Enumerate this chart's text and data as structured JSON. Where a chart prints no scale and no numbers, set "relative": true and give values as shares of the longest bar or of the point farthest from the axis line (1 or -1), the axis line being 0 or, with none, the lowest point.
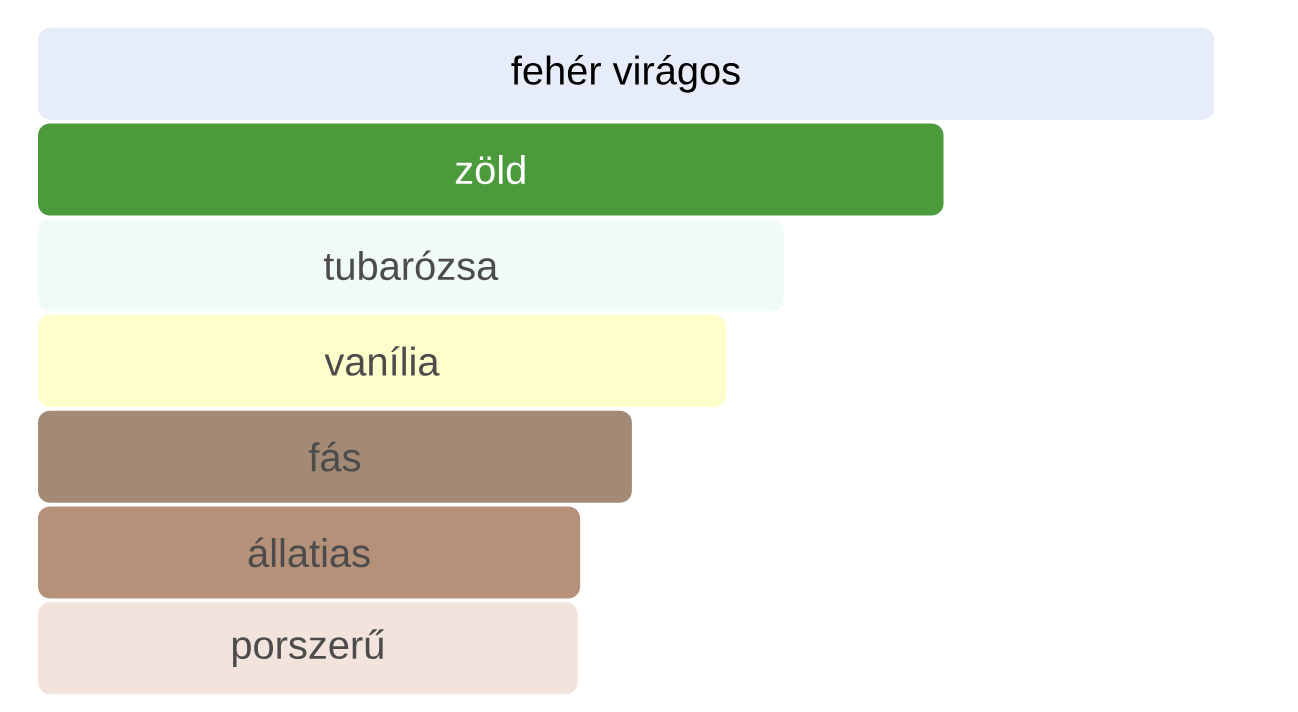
{
  "chart_data": {
    "type": "bar",
    "orientation": "horizontal",
    "relative": true,
    "categories": [
      "fehér virágos",
      "zöld",
      "tubarózsa",
      "vanília",
      "fás",
      "állatias",
      "porszerű"
    ],
    "values": [
      1,
      0.77,
      0.634,
      0.585,
      0.505,
      0.461,
      0.459
    ],
    "colors": [
      "#e6ecf8",
      "#4b9a3c",
      "#effbf4",
      "#fefecb",
      "#a38a75",
      "#b5917a",
      "#f2e4dc"
    ]
  }
}
